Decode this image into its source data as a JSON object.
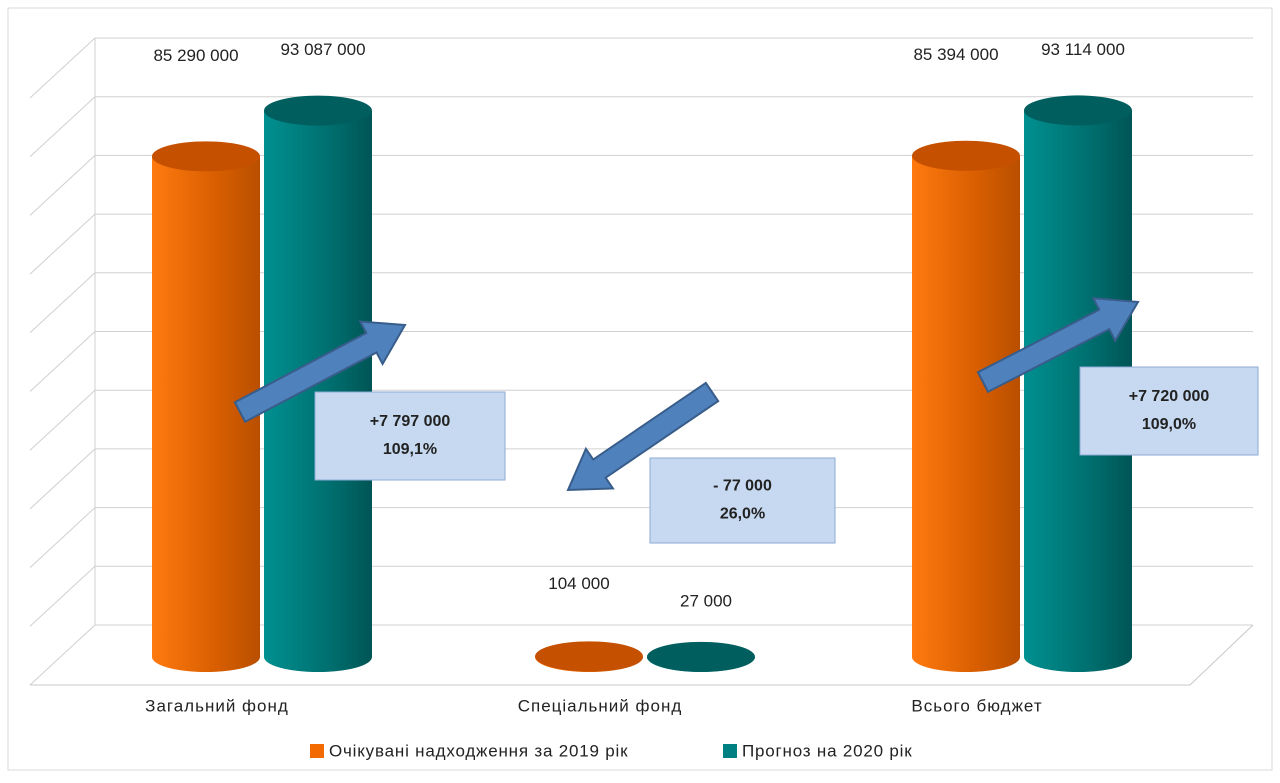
{
  "chart_data": {
    "type": "bar3d",
    "categories": [
      "Загальний фонд",
      "Спеціальний фонд",
      "Всього бюджет"
    ],
    "series": [
      {
        "name": "Очікувані надходження за 2019 рік",
        "color": "#f26a00",
        "values": [
          85290000,
          104000,
          85394000
        ],
        "value_labels": [
          "85 290 000",
          "104 000",
          "85 394 000"
        ]
      },
      {
        "name": "Прогноз на 2020 рік",
        "color": "#008080",
        "values": [
          93087000,
          27000,
          93114000
        ],
        "value_labels": [
          "93 087 000",
          "27 000",
          "93 114 000"
        ]
      }
    ],
    "ylim": [
      0,
      100000000
    ],
    "yticks": [
      0,
      10000000,
      20000000,
      30000000,
      40000000,
      50000000,
      60000000,
      70000000,
      80000000,
      90000000,
      100000000
    ],
    "grid": true,
    "legend": "bottom",
    "annotations": [
      {
        "lines": [
          "+7 797 000",
          "109,1%"
        ]
      },
      {
        "lines": [
          "- 77 000",
          "26,0%"
        ]
      },
      {
        "lines": [
          "+7 720 000",
          "109,0%"
        ]
      }
    ]
  }
}
